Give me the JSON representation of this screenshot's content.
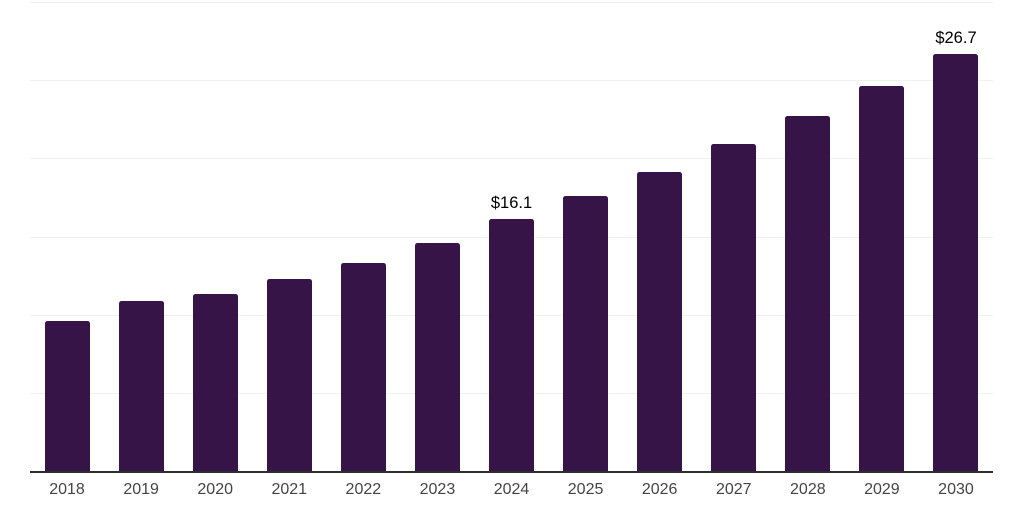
{
  "chart_data": {
    "type": "bar",
    "title": "",
    "xlabel": "",
    "ylabel": "",
    "categories": [
      "2018",
      "2019",
      "2020",
      "2021",
      "2022",
      "2023",
      "2024",
      "2025",
      "2026",
      "2027",
      "2028",
      "2029",
      "2030"
    ],
    "values": [
      9.6,
      10.9,
      11.3,
      12.3,
      13.3,
      14.6,
      16.1,
      17.6,
      19.1,
      20.9,
      22.7,
      24.6,
      26.7
    ],
    "data_labels": [
      {
        "category": "2024",
        "text": "$16.1"
      },
      {
        "category": "2030",
        "text": "$26.7"
      }
    ],
    "ylim": [
      0,
      30
    ],
    "gridline_step": 5,
    "grid": true,
    "y_axis_tick_labels_visible": false,
    "legend_position": "none",
    "colors": {
      "bar": "#371448",
      "gridline": "#f0f0f0",
      "axis_line": "#2e2e2e",
      "tick_label": "#444444",
      "data_label": "#000000",
      "background": "#ffffff"
    }
  }
}
